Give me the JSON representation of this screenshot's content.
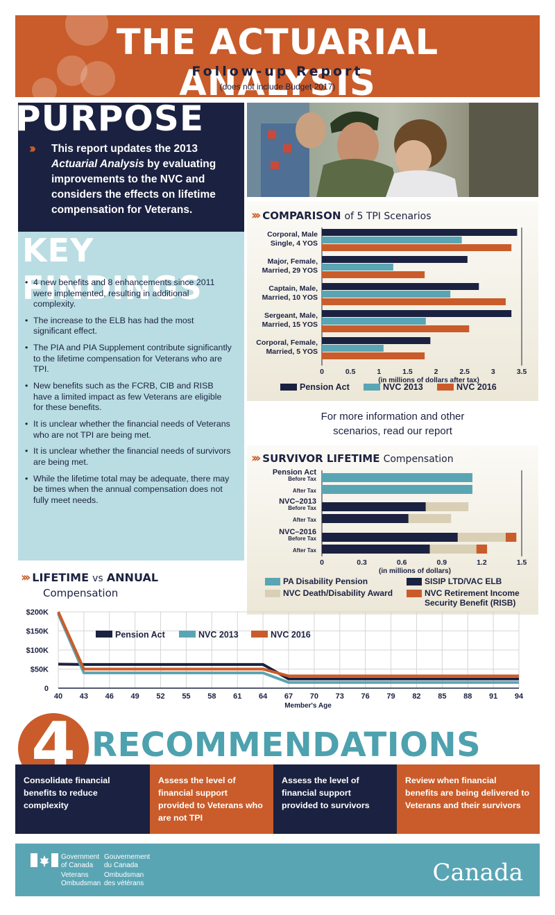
{
  "header": {
    "title": "THE ACTUARIAL ANALYSIS",
    "subtitle": "Follow-up Report",
    "note": "(does not include Budget 2017)"
  },
  "purpose": {
    "heading": "PURPOSE",
    "text_before": "This report updates the 2013 ",
    "text_italic": "Actuarial Analysis",
    "text_after": " by evaluating improvements to the NVC and considers the effects on lifetime compensation for Veterans."
  },
  "key_findings": {
    "heading": "KEY FINDINGS",
    "items": [
      "4 new benefits and 8 enhancements since 2011 were implemented, resulting in additional complexity.",
      "The increase to the ELB has had the most significant effect.",
      "The PIA and PIA Supplement contribute significantly to the lifetime compensation for Veterans who are TPI.",
      "New benefits such as the FCRB, CIB and RISB have a limited impact as few Veterans are eligible for these benefits.",
      "It is unclear whether the financial needs of Veterans who are not TPI are being met.",
      "It is unclear whether the financial needs of survivors are being met.",
      "While the lifetime total may be adequate, there may be times when the annual compensation does not fully meet needs."
    ]
  },
  "more_info": {
    "line1": "For more information and other",
    "line2": "scenarios, read our report"
  },
  "colors": {
    "navy": "#1b2140",
    "teal": "#5aa5b4",
    "orange": "#c95c2a",
    "beige": "#d9cfb5",
    "light_teal": "#b9dde2"
  },
  "chart_data": [
    {
      "type": "bar",
      "orientation": "horizontal",
      "title_bold": "COMPARISON",
      "title_normal": "of 5 TPI Scenarios",
      "categories": [
        [
          "Corporal, Male",
          "Single, 4 YOS"
        ],
        [
          "Major, Female,",
          "Married, 29 YOS"
        ],
        [
          "Captain, Male,",
          "Married, 10 YOS"
        ],
        [
          "Sergeant, Male,",
          "Married, 15 YOS"
        ],
        [
          "Corporal, Female,",
          "Married, 5 YOS"
        ]
      ],
      "series": [
        {
          "name": "Pension Act",
          "color": "#1b2140",
          "values": [
            3.42,
            2.55,
            2.75,
            3.32,
            1.9
          ]
        },
        {
          "name": "NVC 2013",
          "color": "#5aa5b4",
          "values": [
            2.45,
            1.25,
            2.25,
            1.82,
            1.08
          ]
        },
        {
          "name": "NVC 2016",
          "color": "#c95c2a",
          "values": [
            3.32,
            1.8,
            3.22,
            2.58,
            1.8
          ]
        }
      ],
      "xlabel": "(in millions of dollars after tax)",
      "xlim": [
        0,
        3.5
      ],
      "xticks": [
        "0",
        "0.5",
        "1",
        "1.5",
        "2",
        "2.5",
        "3",
        "3.5"
      ],
      "legend": "bottom"
    },
    {
      "type": "bar",
      "orientation": "horizontal",
      "stacked": true,
      "title_bold": "SURVIVOR LIFETIME",
      "title_normal": "Compensation",
      "groups": [
        {
          "name": "Pension Act",
          "rows": [
            "Before Tax",
            "After Tax"
          ]
        },
        {
          "name": "NVC–2013",
          "rows": [
            "Before Tax",
            "After Tax"
          ]
        },
        {
          "name": "NVC–2016",
          "rows": [
            "Before Tax",
            "After Tax"
          ]
        }
      ],
      "rows": [
        {
          "group": 0,
          "label": "Before Tax",
          "segments": [
            1.13,
            0,
            0,
            0
          ]
        },
        {
          "group": 0,
          "label": "After Tax",
          "segments": [
            1.13,
            0,
            0,
            0
          ]
        },
        {
          "group": 1,
          "label": "Before Tax",
          "segments": [
            0,
            0.78,
            0.32,
            0
          ]
        },
        {
          "group": 1,
          "label": "After Tax",
          "segments": [
            0,
            0.65,
            0.32,
            0
          ]
        },
        {
          "group": 2,
          "label": "Before Tax",
          "segments": [
            0,
            1.02,
            0.36,
            0.08
          ]
        },
        {
          "group": 2,
          "label": "After Tax",
          "segments": [
            0,
            0.81,
            0.35,
            0.08
          ]
        }
      ],
      "series": [
        {
          "name": "PA Disability Pension",
          "color": "#5aa5b4"
        },
        {
          "name": "SISIP LTD/VAC ELB",
          "color": "#1b2140"
        },
        {
          "name": "NVC Death/Disability Award",
          "color": "#d9cfb5"
        },
        {
          "name": "NVC Retirement Income Security Benefit (RISB)",
          "color": "#c95c2a"
        }
      ],
      "xlabel": "(in millions of dollars)",
      "xlim": [
        0,
        1.5
      ],
      "xticks": [
        "0",
        "0.3",
        "0.6",
        "0.9",
        "1.2",
        "1.5"
      ],
      "legend": "bottom"
    },
    {
      "type": "line",
      "title_bold": "LIFETIME",
      "title_vs": "vs",
      "title_bold2": "ANNUAL",
      "title_normal": "Compensation",
      "x": [
        40,
        43,
        46,
        49,
        52,
        55,
        58,
        61,
        64,
        67,
        70,
        73,
        76,
        79,
        82,
        85,
        88,
        91,
        94
      ],
      "xticks": [
        "40",
        "43",
        "46",
        "49",
        "52",
        "55",
        "58",
        "61",
        "64",
        "67",
        "70",
        "73",
        "76",
        "79",
        "82",
        "85",
        "88",
        "91",
        "94"
      ],
      "xlabel": "Member's Age",
      "ylim": [
        0,
        200000
      ],
      "yticks": [
        "0",
        "$50K",
        "$100K",
        "$150K",
        "$200K"
      ],
      "series": [
        {
          "name": "Pension Act",
          "color": "#1b2140",
          "values": [
            63000,
            62000,
            62000,
            62000,
            62000,
            62000,
            62000,
            62000,
            62000,
            24000,
            24000,
            24000,
            24000,
            24000,
            24000,
            24000,
            24000,
            24000,
            24000
          ]
        },
        {
          "name": "NVC 2013",
          "color": "#5aa5b4",
          "values": [
            195000,
            40000,
            40000,
            40000,
            40000,
            40000,
            40000,
            40000,
            40000,
            15000,
            15000,
            15000,
            15000,
            15000,
            15000,
            15000,
            15000,
            15000,
            15000
          ]
        },
        {
          "name": "NVC 2016",
          "color": "#c95c2a",
          "values": [
            200000,
            50000,
            50000,
            50000,
            50000,
            50000,
            50000,
            50000,
            50000,
            32000,
            32000,
            32000,
            32000,
            32000,
            32000,
            32000,
            32000,
            32000,
            32000
          ]
        }
      ],
      "legend": "top-left"
    }
  ],
  "recommendations": {
    "count": "4",
    "heading": "RECOMMENDATIONS",
    "items": [
      {
        "text": "Consolidate financial benefits to reduce complexity",
        "color": "#1b2140"
      },
      {
        "text": "Assess the level of financial support provided to Veterans who are not TPI",
        "color": "#c95c2a"
      },
      {
        "text": "Assess the level of financial support provided to survivors",
        "color": "#1b2140"
      },
      {
        "text": "Review when financial benefits are being delivered to Veterans and their survivors",
        "color": "#c95c2a"
      }
    ]
  },
  "footer": {
    "gov_en": "Government of Canada",
    "gov_fr": "Gouvernement du Canada",
    "ombud_en": "Veterans Ombudsman",
    "ombud_fr": "Ombudsman des vétérans",
    "wordmark": "Canada"
  }
}
